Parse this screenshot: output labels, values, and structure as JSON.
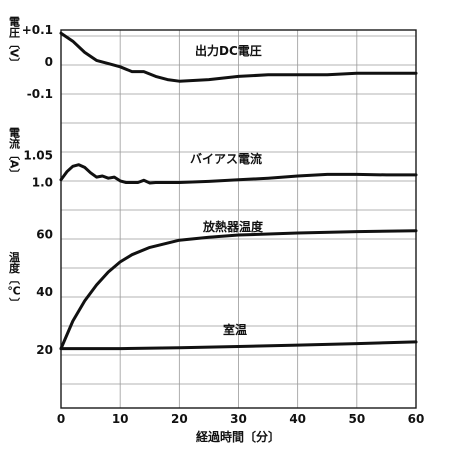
{
  "chart_data": {
    "type": "line",
    "xlabel": "経過時間〔分〕",
    "x_ticks": [
      "0",
      "10",
      "20",
      "30",
      "40",
      "50",
      "60"
    ],
    "xlim": [
      0,
      60
    ],
    "panels": [
      {
        "id": "voltage",
        "ylabel": "電圧〔V〕",
        "ylim": [
          -0.1,
          0.1
        ],
        "y_ticks": [
          {
            "value": 0.1,
            "label": "+0.1"
          },
          {
            "value": 0,
            "label": "0"
          },
          {
            "value": -0.1,
            "label": "-0.1"
          }
        ],
        "series": [
          {
            "name": "出力DC電圧",
            "x": [
              0,
              2,
              4,
              6,
              8,
              10,
              12,
              14,
              16,
              18,
              20,
              25,
              30,
              35,
              40,
              45,
              50,
              55,
              60
            ],
            "y": [
              0.09,
              0.065,
              0.03,
              0.005,
              -0.005,
              -0.015,
              -0.03,
              -0.03,
              -0.045,
              -0.055,
              -0.06,
              -0.055,
              -0.045,
              -0.04,
              -0.04,
              -0.04,
              -0.035,
              -0.035,
              -0.035
            ]
          }
        ]
      },
      {
        "id": "current",
        "ylabel": "電流〔A〕",
        "ylim": [
          0.975,
          1.075
        ],
        "y_ticks": [
          {
            "value": 1.05,
            "label": "1.05"
          },
          {
            "value": 1.0,
            "label": "1.0"
          }
        ],
        "series": [
          {
            "name": "バイアス電流",
            "x": [
              0,
              1,
              2,
              3,
              4,
              5,
              6,
              7,
              8,
              9,
              10,
              11,
              12,
              13,
              14,
              15,
              16,
              18,
              20,
              25,
              30,
              35,
              40,
              45,
              50,
              55,
              60
            ],
            "y": [
              1.005,
              1.02,
              1.03,
              1.033,
              1.028,
              1.018,
              1.01,
              1.012,
              1.008,
              1.01,
              1.003,
              1.0,
              1.0,
              1.0,
              1.004,
              0.999,
              1.0,
              1.0,
              1.0,
              1.002,
              1.005,
              1.008,
              1.012,
              1.015,
              1.015,
              1.014,
              1.014
            ]
          }
        ]
      },
      {
        "id": "temperature",
        "ylabel": "温度〔℃〕",
        "ylim": [
          20,
          65
        ],
        "y_ticks": [
          {
            "value": 60,
            "label": "60"
          },
          {
            "value": 40,
            "label": "40"
          },
          {
            "value": 20,
            "label": "20"
          }
        ],
        "series": [
          {
            "name": "放熱器温度",
            "x": [
              0,
              2,
              4,
              6,
              8,
              10,
              12,
              15,
              20,
              25,
              30,
              40,
              50,
              60
            ],
            "y": [
              20.5,
              30,
              37,
              42.5,
              47,
              50.5,
              53,
              55.5,
              58,
              59,
              59.8,
              60.5,
              61,
              61.3
            ]
          },
          {
            "name": "室温",
            "x": [
              0,
              10,
              20,
              30,
              40,
              50,
              60
            ],
            "y": [
              20.5,
              20.5,
              20.8,
              21.2,
              21.7,
              22.2,
              22.8
            ]
          }
        ]
      }
    ]
  }
}
